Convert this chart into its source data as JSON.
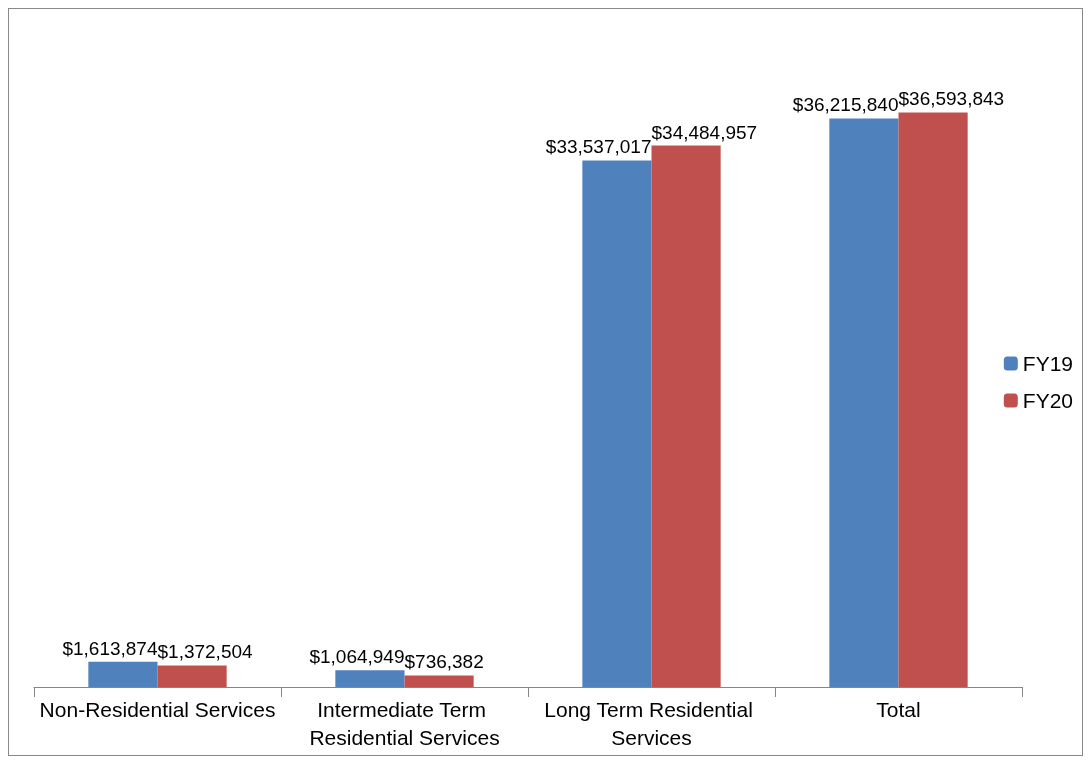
{
  "chart_data": {
    "type": "bar",
    "categories": [
      "Non-Residential Services",
      "Intermediate Term Residential Services",
      "Long Term Residential Services",
      "Total"
    ],
    "series": [
      {
        "name": "FY19",
        "color": "#4f81bd",
        "values": [
          1613874,
          1064949,
          33537017,
          36215840
        ],
        "value_labels": [
          "$1,613,874",
          "$1,064,949",
          "$33,537,017",
          "$36,215,840"
        ]
      },
      {
        "name": "FY20",
        "color": "#c0504d",
        "values": [
          1372504,
          736382,
          34484957,
          36593843
        ],
        "value_labels": [
          "$1,372,504",
          "$736,382",
          "$34,484,957",
          "$36,593,843"
        ]
      }
    ],
    "legend": "right",
    "grid": false
  }
}
